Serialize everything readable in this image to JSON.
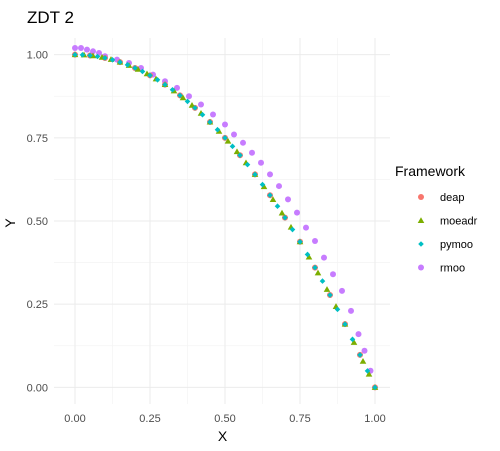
{
  "chart_data": {
    "type": "scatter",
    "title": "ZDT 2",
    "xlabel": "X",
    "ylabel": "Y",
    "xlim": [
      0,
      1
    ],
    "ylim": [
      0,
      1.02
    ],
    "x_ticks": [
      "0.00",
      "0.25",
      "0.50",
      "0.75",
      "1.00"
    ],
    "y_ticks": [
      "0.00",
      "0.25",
      "0.50",
      "0.75",
      "1.00"
    ],
    "grid": true,
    "legend": {
      "title": "Framework",
      "position": "right"
    },
    "series": [
      {
        "name": "deap",
        "color": "#F8766D",
        "shape": "circle",
        "x": [
          0,
          0.05,
          0.1,
          0.15,
          0.2,
          0.25,
          0.3,
          0.35,
          0.4,
          0.45,
          0.5,
          0.55,
          0.6,
          0.65,
          0.7,
          0.75,
          0.8,
          0.85,
          0.9,
          0.95,
          1.0
        ],
        "y": [
          1.0,
          0.9975,
          0.99,
          0.9775,
          0.96,
          0.9375,
          0.91,
          0.8775,
          0.84,
          0.7975,
          0.75,
          0.6975,
          0.64,
          0.5775,
          0.51,
          0.4375,
          0.36,
          0.2775,
          0.19,
          0.0975,
          0.0
        ]
      },
      {
        "name": "moeadr",
        "color": "#7CAE00",
        "shape": "triangle",
        "x": [
          0,
          0.03,
          0.06,
          0.09,
          0.12,
          0.15,
          0.18,
          0.21,
          0.24,
          0.27,
          0.3,
          0.33,
          0.36,
          0.39,
          0.42,
          0.45,
          0.48,
          0.51,
          0.54,
          0.57,
          0.6,
          0.63,
          0.66,
          0.69,
          0.72,
          0.75,
          0.78,
          0.81,
          0.84,
          0.87,
          0.9,
          0.93,
          0.96,
          0.98,
          1.0
        ],
        "y": [
          1.0,
          0.9991,
          0.9964,
          0.9919,
          0.9856,
          0.9775,
          0.9676,
          0.9559,
          0.9424,
          0.9271,
          0.91,
          0.8911,
          0.8704,
          0.8479,
          0.8236,
          0.7975,
          0.7696,
          0.7399,
          0.7084,
          0.6751,
          0.64,
          0.6031,
          0.5644,
          0.5239,
          0.4816,
          0.4375,
          0.3916,
          0.3439,
          0.2944,
          0.2431,
          0.19,
          0.1351,
          0.0784,
          0.0396,
          0.0
        ]
      },
      {
        "name": "pymoo",
        "color": "#00BFC4",
        "shape": "diamond",
        "x": [
          0,
          0.025,
          0.05,
          0.075,
          0.1,
          0.125,
          0.15,
          0.175,
          0.2,
          0.225,
          0.25,
          0.275,
          0.3,
          0.325,
          0.35,
          0.375,
          0.4,
          0.425,
          0.45,
          0.475,
          0.5,
          0.525,
          0.55,
          0.575,
          0.6,
          0.625,
          0.65,
          0.675,
          0.7,
          0.725,
          0.75,
          0.775,
          0.8,
          0.825,
          0.85,
          0.875,
          0.9,
          0.925,
          0.95,
          0.975,
          1.0
        ],
        "y": [
          1.0,
          0.9994,
          0.9975,
          0.9944,
          0.99,
          0.9844,
          0.9775,
          0.9694,
          0.96,
          0.9494,
          0.9375,
          0.9244,
          0.91,
          0.8944,
          0.8775,
          0.8594,
          0.84,
          0.8194,
          0.7975,
          0.7744,
          0.75,
          0.7244,
          0.6975,
          0.6694,
          0.64,
          0.6094,
          0.5775,
          0.5444,
          0.51,
          0.4744,
          0.4375,
          0.3994,
          0.36,
          0.3194,
          0.2775,
          0.2344,
          0.19,
          0.1444,
          0.0975,
          0.0494,
          0.0
        ]
      },
      {
        "name": "rmoo",
        "color": "#C77CFF",
        "shape": "circle",
        "x": [
          0.0,
          0.02,
          0.04,
          0.06,
          0.08,
          0.1,
          0.14,
          0.18,
          0.22,
          0.26,
          0.3,
          0.34,
          0.38,
          0.42,
          0.46,
          0.5,
          0.53,
          0.56,
          0.59,
          0.62,
          0.65,
          0.68,
          0.71,
          0.74,
          0.77,
          0.8,
          0.83,
          0.86,
          0.89,
          0.92,
          0.945,
          0.965,
          0.985
        ],
        "y": [
          1.02,
          1.02,
          1.015,
          1.01,
          1.005,
          0.995,
          0.985,
          0.975,
          0.96,
          0.94,
          0.92,
          0.9,
          0.875,
          0.85,
          0.82,
          0.79,
          0.76,
          0.735,
          0.705,
          0.675,
          0.64,
          0.605,
          0.565,
          0.525,
          0.48,
          0.44,
          0.39,
          0.34,
          0.29,
          0.23,
          0.16,
          0.11,
          0.05
        ]
      }
    ]
  }
}
